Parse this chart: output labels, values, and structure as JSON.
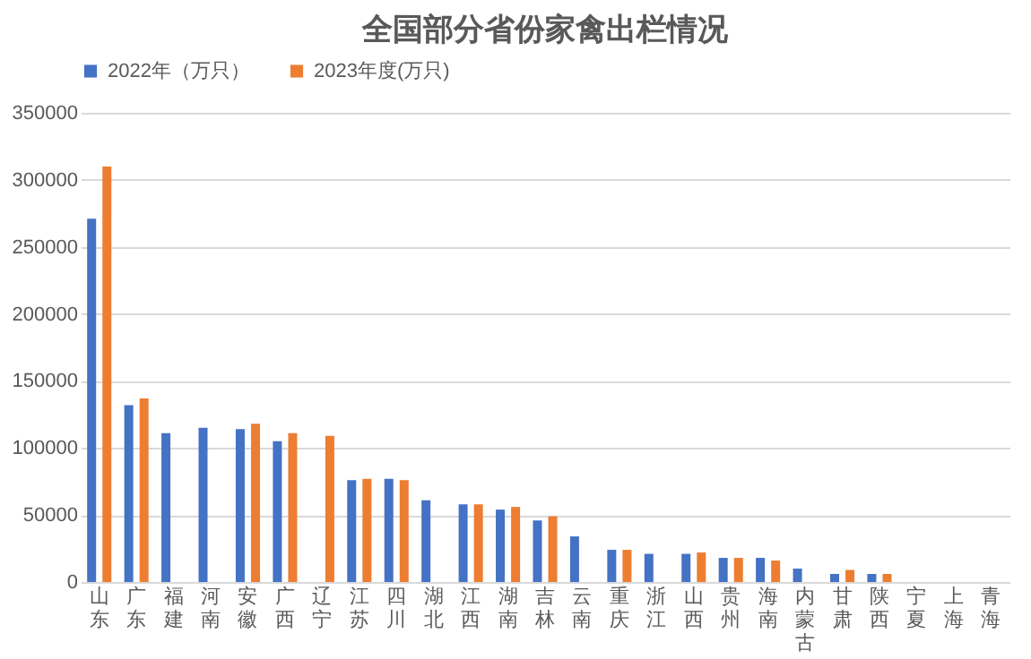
{
  "chart_data": {
    "type": "bar",
    "title": "全国部分省份家禽出栏情况",
    "categories": [
      "山东",
      "广东",
      "福建",
      "河南",
      "安徽",
      "广西",
      "辽宁",
      "江苏",
      "四川",
      "湖北",
      "江西",
      "湖南",
      "吉林",
      "云南",
      "重庆",
      "浙江",
      "山西",
      "贵州",
      "海南",
      "内蒙古",
      "甘肃",
      "陕西",
      "宁夏",
      "上海",
      "青海"
    ],
    "series": [
      {
        "name": "2022年（万只）",
        "color": "#4472c4",
        "values": [
          271000,
          132000,
          111000,
          115000,
          114000,
          105000,
          null,
          76000,
          77000,
          61000,
          58000,
          54000,
          46000,
          34000,
          24000,
          21000,
          21000,
          18000,
          18000,
          10000,
          6000,
          6000,
          null,
          null,
          null
        ]
      },
      {
        "name": "2023年度(万只)",
        "color": "#ed7d31",
        "values": [
          310000,
          137000,
          null,
          null,
          118000,
          111000,
          109000,
          77000,
          76000,
          null,
          58000,
          56000,
          49000,
          null,
          24000,
          null,
          22000,
          18000,
          16000,
          null,
          9000,
          6000,
          null,
          null,
          null
        ]
      }
    ],
    "ylim": [
      0,
      350000
    ],
    "yticks": [
      0,
      50000,
      100000,
      150000,
      200000,
      250000,
      300000,
      350000
    ],
    "grid": "y",
    "legend": "top"
  }
}
